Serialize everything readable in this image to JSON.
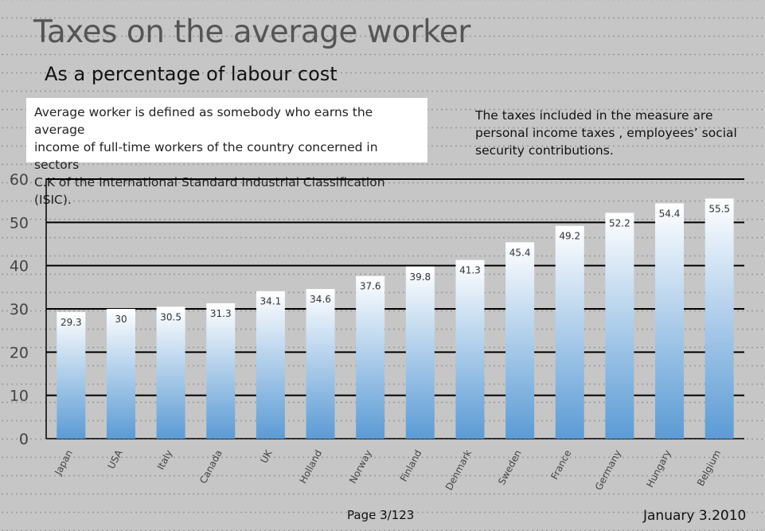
{
  "chart_data": {
    "type": "bar",
    "title": "Taxes on the average worker",
    "subtitle": "As a percentage of labour cost",
    "categories": [
      "Japan",
      "USA",
      "Italy",
      "Canada",
      "UK",
      "Holland",
      "Norway",
      "Finland",
      "Denmark",
      "Sweden",
      "France",
      "Germany",
      "Hungary",
      "Belgium"
    ],
    "values": [
      29.3,
      30,
      30.5,
      31.3,
      34.1,
      34.6,
      37.6,
      39.8,
      41.3,
      45.4,
      49.2,
      52.2,
      54.4,
      55.5
    ],
    "data_labels": [
      "29.3",
      "30",
      "30.5",
      "31.3",
      "34.1",
      "34.6",
      "37.6",
      "39.8",
      "41.3",
      "45.4",
      "49.2",
      "52.2",
      "54.4",
      "55.5"
    ],
    "y_ticks": [
      "0",
      "10",
      "20",
      "30",
      "40",
      "50",
      "60"
    ],
    "ylim": [
      0,
      60
    ],
    "xlabel": "",
    "ylabel": "",
    "grid": true,
    "legend": "none",
    "bar_gradient_top": "#ffffff",
    "bar_gradient_bottom": "#5b9bd5",
    "gridline_color": "#000000"
  },
  "annotations": {
    "definition": "Average worker is defined as somebody who earns the average income of full-time workers of the country concerned in sectors C.K of the International Standard Industrial Classification (ISIC).",
    "definition_lines": [
      "Average worker is defined as somebody who earns the average",
      "income of full-time workers of the country concerned in sectors",
      "C.K of the International Standard Industrial Classification (ISIC)."
    ],
    "taxes_note_lines": [
      "The taxes included in the measure are",
      "personal income taxes , employees’ social",
      "security  contributions."
    ]
  },
  "footer": {
    "page": "Page 3/123",
    "date": "January 3.2010"
  }
}
